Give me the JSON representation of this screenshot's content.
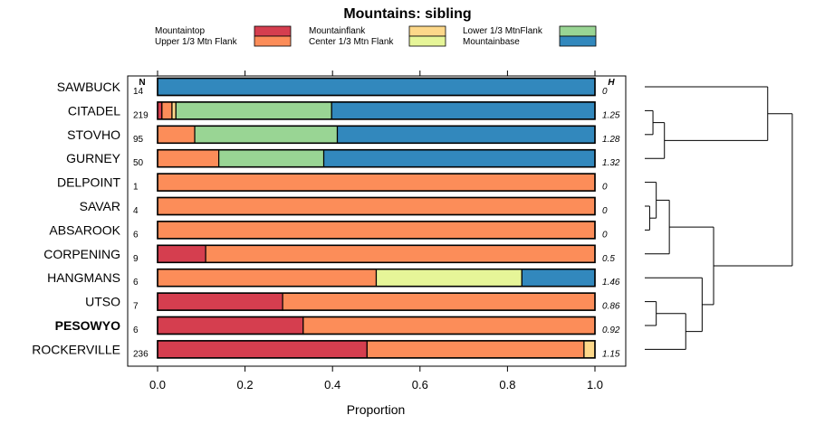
{
  "chart_data": {
    "type": "bar",
    "orientation": "horizontal",
    "stacked": true,
    "title": "Mountains: sibling",
    "xlabel": "Proportion",
    "xlim": [
      0,
      1
    ],
    "xticks": [
      "0.0",
      "0.2",
      "0.4",
      "0.6",
      "0.8",
      "1.0"
    ],
    "n_header": "N",
    "h_header": "H",
    "legend": [
      {
        "name": "Mountaintop",
        "color": "#d53e4f"
      },
      {
        "name": "Mountainflank",
        "color": "#fdd88a"
      },
      {
        "name": "Lower 1/3 MtnFlank",
        "color": "#99d594"
      },
      {
        "name": "Upper 1/3 Mtn Flank",
        "color": "#fc8d59"
      },
      {
        "name": "Center 1/3 Mtn Flank",
        "color": "#e6f598"
      },
      {
        "name": "Mountainbase",
        "color": "#3288bd"
      }
    ],
    "highlight_category": "PESOWYO",
    "categories": [
      "SAWBUCK",
      "CITADEL",
      "STOVHO",
      "GURNEY",
      "DELPOINT",
      "SAVAR",
      "ABSAROOK",
      "CORPENING",
      "HANGMANS",
      "UTSO",
      "PESOWYO",
      "ROCKERVILLE"
    ],
    "n": [
      "14",
      "219",
      "95",
      "50",
      "1",
      "4",
      "6",
      "9",
      "6",
      "7",
      "6",
      "236"
    ],
    "h": [
      "0",
      "1.25",
      "1.28",
      "1.32",
      "0",
      "0",
      "0",
      "0.5",
      "1.46",
      "0.86",
      "0.92",
      "1.15"
    ],
    "series": [
      {
        "name": "Mountaintop",
        "values": [
          0,
          0.01,
          0,
          0,
          0,
          0,
          0,
          0.11,
          0,
          0.286,
          0.333,
          0.479
        ]
      },
      {
        "name": "Upper 1/3 Mtn Flank",
        "values": [
          0,
          0.023,
          0.085,
          0.14,
          1,
          1,
          1,
          0.89,
          0.5,
          0.714,
          0.667,
          0.496
        ]
      },
      {
        "name": "Mountainflank",
        "values": [
          0,
          0.009,
          0,
          0,
          0,
          0,
          0,
          0,
          0,
          0,
          0,
          0.025
        ]
      },
      {
        "name": "Center 1/3 Mtn Flank",
        "values": [
          0,
          0,
          0,
          0,
          0,
          0,
          0,
          0,
          0.333,
          0,
          0,
          0
        ]
      },
      {
        "name": "Lower 1/3 MtnFlank",
        "values": [
          0,
          0.356,
          0.326,
          0.24,
          0,
          0,
          0,
          0,
          0,
          0,
          0,
          0
        ]
      },
      {
        "name": "Mountainbase",
        "values": [
          1,
          0.602,
          0.589,
          0.62,
          0,
          0,
          0,
          0,
          0.167,
          0,
          0,
          0
        ]
      }
    ],
    "dendrogram": {
      "description": "hierarchical clustering of rows",
      "merges": [
        [
          1,
          2,
          0.05
        ],
        [
          3,
          12,
          0.12
        ],
        [
          0,
          13,
          0.75
        ],
        [
          5,
          6,
          0.03
        ],
        [
          4,
          15,
          0.07
        ],
        [
          16,
          7,
          0.15
        ],
        [
          9,
          10,
          0.07
        ],
        [
          18,
          11,
          0.25
        ],
        [
          8,
          19,
          0.35
        ],
        [
          17,
          20,
          0.42
        ],
        [
          14,
          21,
          0.9
        ]
      ]
    }
  }
}
